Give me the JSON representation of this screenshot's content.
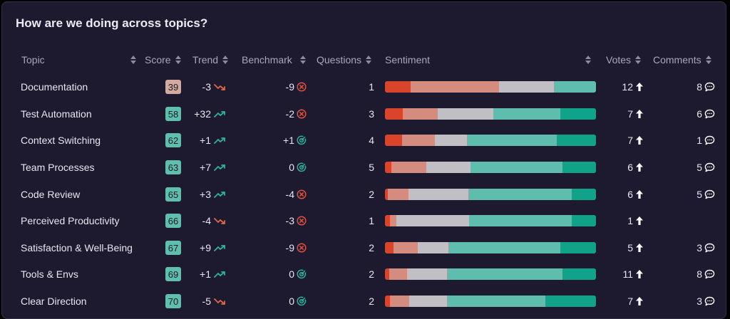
{
  "title": "How are we doing across topics?",
  "headers": {
    "topic": "Topic",
    "score": "Score",
    "trend": "Trend",
    "benchmark": "Benchmark",
    "questions": "Questions",
    "sentiment": "Sentiment",
    "votes": "Votes",
    "comments": "Comments"
  },
  "colors": {
    "score_low": "#d2aa9f",
    "score_good": "#5ebfae",
    "trend_up": "#2bb39a",
    "trend_down": "#e06646",
    "bench_bad": "#e0503c",
    "bench_good": "#2bb39a",
    "sentiment": [
      "#d9442b",
      "#d38c7d",
      "#c2bfc4",
      "#5ebdad",
      "#11a28a"
    ]
  },
  "icons": {
    "trend_up": "trend-up-icon",
    "trend_down": "trend-down-icon",
    "bench_bad": "circle-x-icon",
    "bench_good": "target-icon",
    "votes": "arrow-up-icon",
    "comments": "comment-icon"
  },
  "rows": [
    {
      "topic": "Documentation",
      "score": "39",
      "score_level": "low",
      "trend": "-3",
      "trend_dir": "down",
      "benchmark": "-9",
      "bench_status": "bad",
      "questions": "1",
      "sentiment": [
        0.12,
        0.42,
        0.26,
        0.2,
        0.0
      ],
      "votes": "12",
      "comments": "8"
    },
    {
      "topic": "Test Automation",
      "score": "58",
      "score_level": "good",
      "trend": "+32",
      "trend_dir": "up",
      "benchmark": "-2",
      "bench_status": "bad",
      "questions": "3",
      "sentiment": [
        0.085,
        0.165,
        0.265,
        0.315,
        0.17
      ],
      "votes": "7",
      "comments": "6"
    },
    {
      "topic": "Context Switching",
      "score": "62",
      "score_level": "good",
      "trend": "+1",
      "trend_dir": "up",
      "benchmark": "+1",
      "bench_status": "good",
      "questions": "4",
      "sentiment": [
        0.08,
        0.155,
        0.155,
        0.425,
        0.185
      ],
      "votes": "7",
      "comments": "1"
    },
    {
      "topic": "Team Processes",
      "score": "63",
      "score_level": "good",
      "trend": "+7",
      "trend_dir": "up",
      "benchmark": "0",
      "bench_status": "good",
      "questions": "5",
      "sentiment": [
        0.03,
        0.165,
        0.21,
        0.435,
        0.16
      ],
      "votes": "6",
      "comments": "5"
    },
    {
      "topic": "Code Review",
      "score": "65",
      "score_level": "good",
      "trend": "+3",
      "trend_dir": "up",
      "benchmark": "-4",
      "bench_status": "bad",
      "questions": "2",
      "sentiment": [
        0.015,
        0.095,
        0.285,
        0.49,
        0.115
      ],
      "votes": "6",
      "comments": "5"
    },
    {
      "topic": "Perceived Productivity",
      "score": "66",
      "score_level": "good",
      "trend": "-4",
      "trend_dir": "down",
      "benchmark": "-3",
      "bench_status": "bad",
      "questions": "1",
      "sentiment": [
        0.025,
        0.03,
        0.345,
        0.485,
        0.115
      ],
      "votes": "1",
      "comments": ""
    },
    {
      "topic": "Satisfaction & Well-Being",
      "score": "67",
      "score_level": "good",
      "trend": "+9",
      "trend_dir": "up",
      "benchmark": "-9",
      "bench_status": "bad",
      "questions": "2",
      "sentiment": [
        0.04,
        0.115,
        0.145,
        0.53,
        0.17
      ],
      "votes": "5",
      "comments": "3"
    },
    {
      "topic": "Tools & Envs",
      "score": "69",
      "score_level": "good",
      "trend": "+1",
      "trend_dir": "up",
      "benchmark": "0",
      "bench_status": "good",
      "questions": "2",
      "sentiment": [
        0.02,
        0.085,
        0.19,
        0.545,
        0.16
      ],
      "votes": "11",
      "comments": "8"
    },
    {
      "topic": "Clear Direction",
      "score": "70",
      "score_level": "good",
      "trend": "-5",
      "trend_dir": "down",
      "benchmark": "0",
      "bench_status": "good",
      "questions": "2",
      "sentiment": [
        0.025,
        0.09,
        0.18,
        0.465,
        0.24
      ],
      "votes": "7",
      "comments": "3"
    }
  ]
}
